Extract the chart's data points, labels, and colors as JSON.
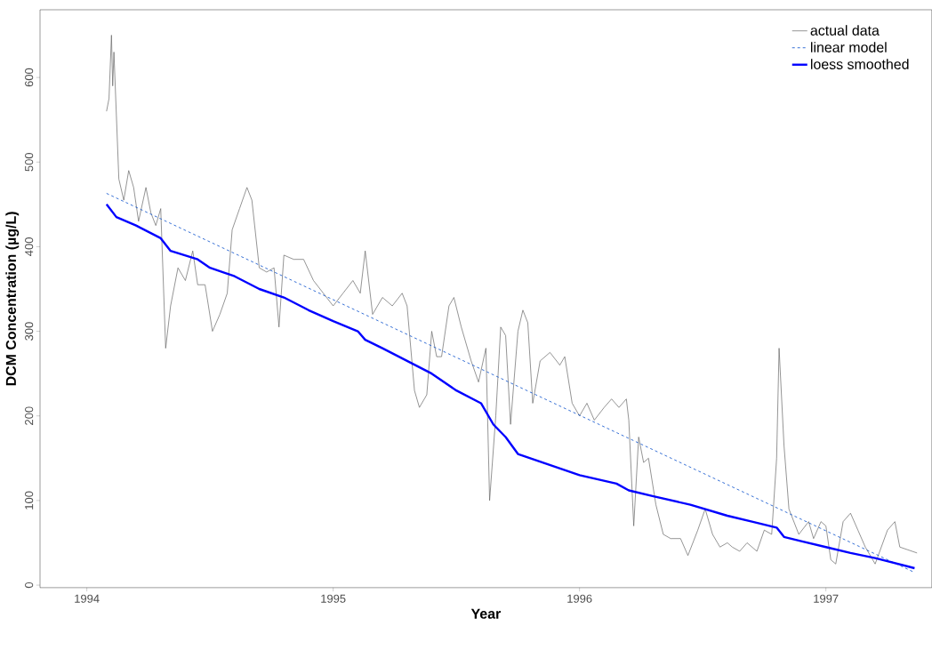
{
  "chart_data": {
    "type": "line",
    "xlabel": "Year",
    "ylabel": "DCM Concentration (µg/L)",
    "xlim": [
      1993.81,
      1997.43
    ],
    "ylim": [
      -3,
      680
    ],
    "xticks": [
      1994,
      1995,
      1996,
      1997
    ],
    "yticks": [
      0,
      100,
      200,
      300,
      400,
      500,
      600
    ],
    "grid": false,
    "legend": "top right",
    "series": [
      {
        "name": "actual data",
        "color": "#666666",
        "line_style": "solid",
        "x": [
          1994.08,
          1994.09,
          1994.1,
          1994.105,
          1994.11,
          1994.13,
          1994.15,
          1994.17,
          1994.19,
          1994.21,
          1994.24,
          1994.26,
          1994.28,
          1994.3,
          1994.32,
          1994.34,
          1994.37,
          1994.4,
          1994.43,
          1994.45,
          1994.48,
          1994.51,
          1994.54,
          1994.57,
          1994.59,
          1994.62,
          1994.65,
          1994.67,
          1994.7,
          1994.73,
          1994.76,
          1994.78,
          1994.8,
          1994.84,
          1994.88,
          1994.92,
          1994.96,
          1995.0,
          1995.04,
          1995.08,
          1995.11,
          1995.13,
          1995.16,
          1995.2,
          1995.24,
          1995.28,
          1995.3,
          1995.33,
          1995.35,
          1995.38,
          1995.4,
          1995.42,
          1995.44,
          1995.47,
          1995.49,
          1995.52,
          1995.56,
          1995.59,
          1995.62,
          1995.635,
          1995.66,
          1995.68,
          1995.7,
          1995.72,
          1995.75,
          1995.77,
          1995.79,
          1995.81,
          1995.84,
          1995.88,
          1995.92,
          1995.94,
          1995.97,
          1996.0,
          1996.03,
          1996.06,
          1996.1,
          1996.13,
          1996.16,
          1996.19,
          1996.2,
          1996.22,
          1996.24,
          1996.26,
          1996.28,
          1996.31,
          1996.34,
          1996.37,
          1996.41,
          1996.44,
          1996.48,
          1996.51,
          1996.54,
          1996.57,
          1996.6,
          1996.62,
          1996.65,
          1996.68,
          1996.72,
          1996.75,
          1996.78,
          1996.8,
          1996.81,
          1996.83,
          1996.85,
          1996.89,
          1996.93,
          1996.95,
          1996.98,
          1997.0,
          1997.02,
          1997.04,
          1997.07,
          1997.1,
          1997.13,
          1997.16,
          1997.2,
          1997.25,
          1997.28,
          1997.3,
          1997.33,
          1997.37
        ],
        "values": [
          560,
          575,
          650,
          590,
          630,
          480,
          455,
          490,
          470,
          430,
          470,
          440,
          425,
          445,
          280,
          330,
          375,
          360,
          395,
          355,
          355,
          300,
          320,
          345,
          420,
          445,
          470,
          455,
          375,
          370,
          375,
          305,
          390,
          385,
          385,
          360,
          345,
          330,
          345,
          360,
          345,
          395,
          320,
          340,
          330,
          345,
          330,
          230,
          210,
          225,
          300,
          270,
          270,
          330,
          340,
          305,
          265,
          240,
          280,
          100,
          200,
          305,
          295,
          190,
          300,
          325,
          310,
          215,
          265,
          275,
          260,
          270,
          215,
          200,
          215,
          195,
          210,
          220,
          210,
          220,
          195,
          70,
          175,
          145,
          150,
          95,
          60,
          55,
          55,
          35,
          65,
          90,
          60,
          45,
          50,
          45,
          40,
          50,
          40,
          65,
          60,
          150,
          280,
          165,
          90,
          60,
          75,
          55,
          75,
          70,
          30,
          25,
          75,
          85,
          65,
          45,
          25,
          65,
          75,
          45,
          42,
          38
        ]
      },
      {
        "name": "linear model",
        "color": "#1f5fd0",
        "line_style": "dashed",
        "x": [
          1994.08,
          1997.36
        ],
        "values": [
          463,
          15
        ]
      },
      {
        "name": "loess smoothed",
        "color": "#0000ff",
        "line_style": "solid",
        "x": [
          1994.08,
          1994.12,
          1994.2,
          1994.3,
          1994.34,
          1994.45,
          1994.5,
          1994.6,
          1994.7,
          1994.8,
          1994.9,
          1995.0,
          1995.1,
          1995.13,
          1995.2,
          1995.3,
          1995.4,
          1995.5,
          1995.6,
          1995.65,
          1995.7,
          1995.75,
          1995.85,
          1996.0,
          1996.15,
          1996.2,
          1996.3,
          1996.45,
          1996.6,
          1996.7,
          1996.8,
          1996.83,
          1996.9,
          1997.0,
          1997.1,
          1997.2,
          1997.36
        ],
        "values": [
          450,
          435,
          425,
          410,
          395,
          385,
          375,
          365,
          350,
          340,
          325,
          312,
          300,
          290,
          280,
          265,
          250,
          230,
          215,
          190,
          175,
          155,
          145,
          130,
          120,
          112,
          105,
          95,
          82,
          75,
          68,
          57,
          52,
          45,
          38,
          32,
          20
        ]
      }
    ]
  }
}
